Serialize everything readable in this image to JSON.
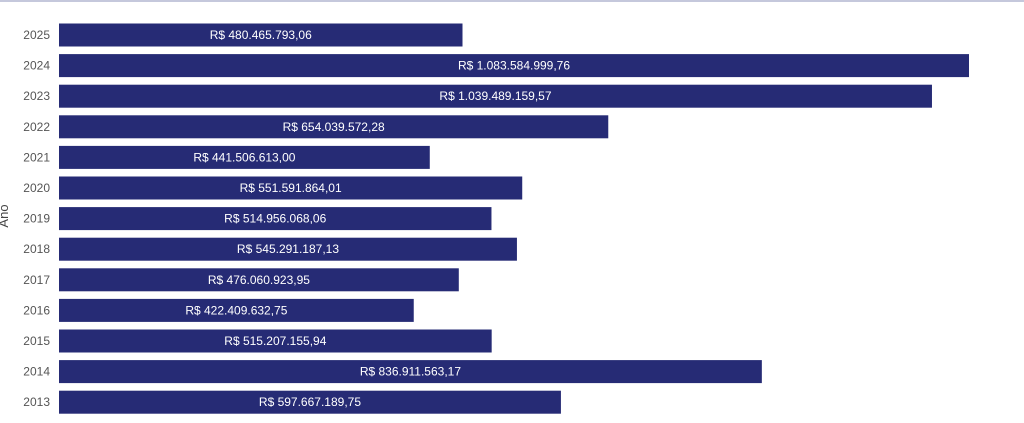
{
  "colors": {
    "bar": "#262b75",
    "label": "#ffffff",
    "tick": "#555555"
  },
  "chart_data": {
    "type": "bar",
    "orientation": "horizontal",
    "title": "",
    "xlabel": "",
    "ylabel": "Ano",
    "xlim": [
      0,
      1083584999.76
    ],
    "grid": false,
    "legend": "none",
    "categories": [
      "2025",
      "2024",
      "2023",
      "2022",
      "2021",
      "2020",
      "2019",
      "2018",
      "2017",
      "2016",
      "2015",
      "2014",
      "2013"
    ],
    "values": [
      480465793.06,
      1083584999.76,
      1039489159.57,
      654039572.28,
      441506613.0,
      551591864.01,
      514956068.06,
      545291187.13,
      476060923.95,
      422409632.75,
      515207155.94,
      836911563.17,
      597667189.75
    ],
    "data_labels": [
      "R$ 480.465.793,06",
      "R$ 1.083.584.999,76",
      "R$ 1.039.489.159,57",
      "R$ 654.039.572,28",
      "R$ 441.506.613,00",
      "R$ 551.591.864,01",
      "R$ 514.956.068,06",
      "R$ 545.291.187,13",
      "R$ 476.060.923,95",
      "R$ 422.409.632,75",
      "R$ 515.207.155,94",
      "R$ 836.911.563,17",
      "R$ 597.667.189,75"
    ]
  }
}
